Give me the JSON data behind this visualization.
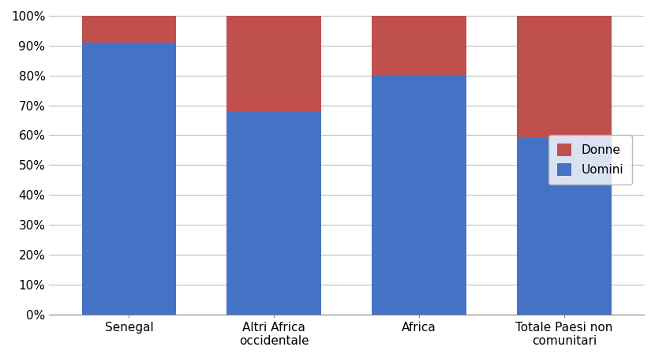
{
  "categories": [
    "Senegal",
    "Altri Africa\noccidentale",
    "Africa",
    "Totale Paesi non\ncomunitari"
  ],
  "uomini": [
    91,
    68,
    80,
    59
  ],
  "donne": [
    9,
    32,
    20,
    41
  ],
  "color_uomini": "#4472C4",
  "color_donne": "#C0504D",
  "ylim": [
    0,
    100
  ],
  "ytick_step": 10,
  "background_color": "#FFFFFF",
  "grid_color": "#C0C0C0",
  "bar_width": 0.65,
  "tick_fontsize": 11,
  "legend_fontsize": 11
}
